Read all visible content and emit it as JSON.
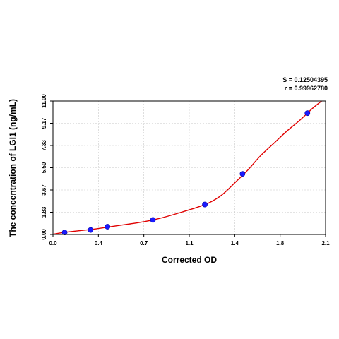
{
  "chart_data": {
    "type": "scatter",
    "xlabel": "Corrected OD",
    "ylabel": "The concentration of LGI1 (ng/mL)",
    "xlim": [
      0.0,
      2.1
    ],
    "ylim": [
      0.0,
      11.0
    ],
    "x_ticks": [
      "0.0",
      "0.4",
      "0.7",
      "1.1",
      "1.4",
      "1.8",
      "2.1"
    ],
    "y_ticks": [
      "0.00",
      "1.83",
      "3.67",
      "5.50",
      "7.33",
      "9.17",
      "11.00"
    ],
    "grid": true,
    "series": [
      {
        "points": [
          {
            "x": 0.09,
            "y": 0.17
          },
          {
            "x": 0.29,
            "y": 0.37
          },
          {
            "x": 0.42,
            "y": 0.64
          },
          {
            "x": 0.77,
            "y": 1.2
          },
          {
            "x": 1.17,
            "y": 2.47
          },
          {
            "x": 1.46,
            "y": 5.0
          },
          {
            "x": 1.96,
            "y": 10.0
          }
        ],
        "marker_color": "#1a1aff"
      }
    ],
    "fit_curve": {
      "color": "#e00000",
      "points": [
        {
          "x": 0.0,
          "y": 0.02
        },
        {
          "x": 0.1,
          "y": 0.19
        },
        {
          "x": 0.2,
          "y": 0.31
        },
        {
          "x": 0.3,
          "y": 0.42
        },
        {
          "x": 0.4,
          "y": 0.57
        },
        {
          "x": 0.5,
          "y": 0.73
        },
        {
          "x": 0.6,
          "y": 0.88
        },
        {
          "x": 0.7,
          "y": 1.05
        },
        {
          "x": 0.8,
          "y": 1.27
        },
        {
          "x": 0.9,
          "y": 1.55
        },
        {
          "x": 1.0,
          "y": 1.87
        },
        {
          "x": 1.1,
          "y": 2.2
        },
        {
          "x": 1.2,
          "y": 2.6
        },
        {
          "x": 1.3,
          "y": 3.25
        },
        {
          "x": 1.4,
          "y": 4.25
        },
        {
          "x": 1.5,
          "y": 5.3
        },
        {
          "x": 1.6,
          "y": 6.5
        },
        {
          "x": 1.7,
          "y": 7.5
        },
        {
          "x": 1.8,
          "y": 8.5
        },
        {
          "x": 1.9,
          "y": 9.4
        },
        {
          "x": 2.0,
          "y": 10.4
        },
        {
          "x": 2.07,
          "y": 11.0
        }
      ]
    },
    "stats": {
      "s_line": "S = 0.12504395",
      "r_line": "r = 0.99962780"
    }
  }
}
